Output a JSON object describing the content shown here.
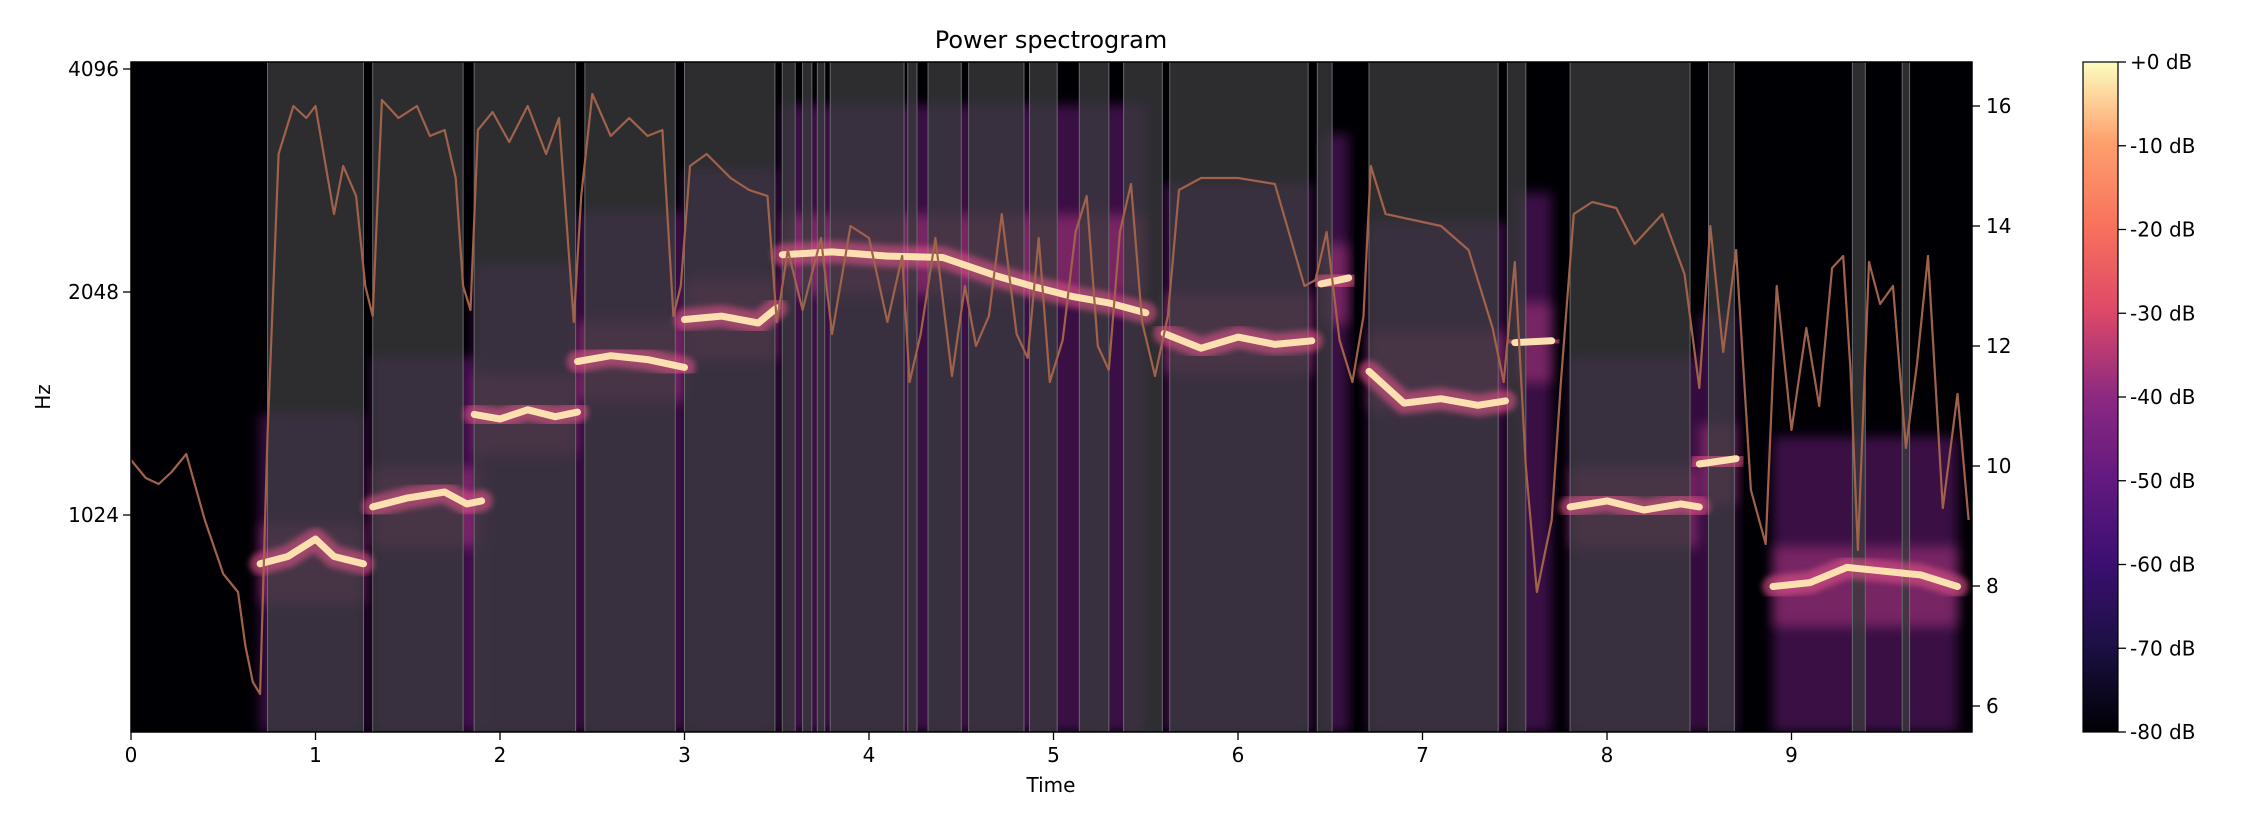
{
  "chart_data": {
    "type": "heatmap",
    "title": "Power spectrogram",
    "xlabel": "Time",
    "ylabel": "Hz",
    "xlim": [
      0,
      10
    ],
    "x_ticks": [
      "0",
      "1",
      "2",
      "3",
      "4",
      "5",
      "6",
      "7",
      "8",
      "9"
    ],
    "y_scale": "log2",
    "y_ticks": [
      "1024",
      "2048",
      "4096"
    ],
    "y2_ticks": [
      "6",
      "8",
      "10",
      "12",
      "14",
      "16"
    ],
    "colorbar": {
      "colormap": "magma",
      "ticks": [
        "+0 dB",
        "-10 dB",
        "-20 dB",
        "-30 dB",
        "-40 dB",
        "-50 dB",
        "-60 dB",
        "-70 dB",
        "-80 dB"
      ],
      "range_db": [
        -80,
        0
      ]
    },
    "colors": {
      "shade_overlay": "#3a3a3e",
      "overlay_line": "#a0624a",
      "harmonic_peak": "#fde0b0",
      "plot_background": "#000004"
    },
    "shaded_segments": [
      [
        0.74,
        1.26
      ],
      [
        1.31,
        1.8
      ],
      [
        1.86,
        2.41
      ],
      [
        2.46,
        2.95
      ],
      [
        3.0,
        3.49
      ],
      [
        3.53,
        3.6
      ],
      [
        3.64,
        3.69
      ],
      [
        3.72,
        3.76
      ],
      [
        3.79,
        4.19
      ],
      [
        4.21,
        4.26
      ],
      [
        4.32,
        4.5
      ],
      [
        4.54,
        4.84
      ],
      [
        4.87,
        5.02
      ],
      [
        5.14,
        5.3
      ],
      [
        5.38,
        5.59
      ],
      [
        5.63,
        6.38
      ],
      [
        6.43,
        6.51
      ],
      [
        6.71,
        7.41
      ],
      [
        7.46,
        7.56
      ],
      [
        7.8,
        8.45
      ],
      [
        8.55,
        8.69
      ],
      [
        9.33,
        9.4
      ],
      [
        9.6,
        9.64
      ]
    ],
    "harmonic_track_hz": [
      {
        "t": [
          0.7,
          0.85,
          1.0,
          1.1,
          1.26
        ],
        "hz": [
          880,
          900,
          950,
          900,
          880
        ]
      },
      {
        "t": [
          1.31,
          1.5,
          1.7,
          1.82,
          1.9
        ],
        "hz": [
          1050,
          1080,
          1100,
          1060,
          1070
        ]
      },
      {
        "t": [
          1.86,
          2.0,
          2.15,
          2.3,
          2.42
        ],
        "hz": [
          1400,
          1380,
          1420,
          1390,
          1410
        ]
      },
      {
        "t": [
          2.42,
          2.6,
          2.8,
          3.0
        ],
        "hz": [
          1650,
          1680,
          1660,
          1620
        ]
      },
      {
        "t": [
          3.0,
          3.2,
          3.4,
          3.5
        ],
        "hz": [
          1880,
          1900,
          1860,
          1950
        ]
      },
      {
        "t": [
          3.53,
          3.8,
          4.1,
          4.4,
          4.7,
          4.9,
          5.1,
          5.3,
          5.5
        ],
        "hz": [
          2300,
          2320,
          2290,
          2280,
          2150,
          2080,
          2020,
          1980,
          1920
        ]
      },
      {
        "t": [
          5.6,
          5.8,
          6.0,
          6.2,
          6.4
        ],
        "hz": [
          1800,
          1720,
          1780,
          1740,
          1760
        ]
      },
      {
        "t": [
          6.45,
          6.6
        ],
        "hz": [
          2100,
          2140
        ]
      },
      {
        "t": [
          6.71,
          6.9,
          7.1,
          7.3,
          7.45
        ],
        "hz": [
          1600,
          1450,
          1470,
          1440,
          1460
        ]
      },
      {
        "t": [
          7.5,
          7.7
        ],
        "hz": [
          1750,
          1760
        ]
      },
      {
        "t": [
          7.8,
          8.0,
          8.2,
          8.4,
          8.5
        ],
        "hz": [
          1050,
          1070,
          1040,
          1060,
          1050
        ]
      },
      {
        "t": [
          8.5,
          8.7
        ],
        "hz": [
          1200,
          1220
        ]
      },
      {
        "t": [
          8.9,
          9.1,
          9.3,
          9.5,
          9.7,
          9.9
        ],
        "hz": [
          820,
          830,
          870,
          860,
          850,
          820
        ]
      }
    ],
    "overlay_curve": {
      "axis": "right",
      "t": [
        0.0,
        0.08,
        0.15,
        0.22,
        0.3,
        0.4,
        0.5,
        0.58,
        0.62,
        0.66,
        0.7,
        0.74,
        0.8,
        0.88,
        0.95,
        1.0,
        1.05,
        1.1,
        1.15,
        1.22,
        1.27,
        1.31,
        1.36,
        1.45,
        1.55,
        1.62,
        1.7,
        1.76,
        1.8,
        1.84,
        1.88,
        1.96,
        2.05,
        2.15,
        2.25,
        2.32,
        2.4,
        2.44,
        2.5,
        2.6,
        2.7,
        2.8,
        2.88,
        2.94,
        2.98,
        3.03,
        3.12,
        3.25,
        3.35,
        3.45,
        3.5,
        3.56,
        3.64,
        3.74,
        3.8,
        3.9,
        4.0,
        4.1,
        4.18,
        4.22,
        4.28,
        4.36,
        4.45,
        4.52,
        4.58,
        4.65,
        4.72,
        4.8,
        4.86,
        4.92,
        4.98,
        5.05,
        5.12,
        5.18,
        5.24,
        5.3,
        5.36,
        5.42,
        5.48,
        5.55,
        5.62,
        5.68,
        5.8,
        6.0,
        6.2,
        6.36,
        6.42,
        6.48,
        6.55,
        6.62,
        6.68,
        6.72,
        6.8,
        6.95,
        7.1,
        7.25,
        7.38,
        7.44,
        7.5,
        7.56,
        7.62,
        7.7,
        7.75,
        7.82,
        7.92,
        8.05,
        8.15,
        8.3,
        8.42,
        8.5,
        8.56,
        8.63,
        8.7,
        8.78,
        8.86,
        8.92,
        9.0,
        9.08,
        9.15,
        9.22,
        9.28,
        9.32,
        9.36,
        9.42,
        9.48,
        9.55,
        9.62,
        9.68,
        9.74,
        9.82,
        9.9,
        9.96
      ],
      "v": [
        10.1,
        9.8,
        9.7,
        9.9,
        10.2,
        9.1,
        8.2,
        7.9,
        7.0,
        6.4,
        6.2,
        10.5,
        15.2,
        16.0,
        15.8,
        16.0,
        15.1,
        14.2,
        15.0,
        14.5,
        13.0,
        12.5,
        16.1,
        15.8,
        16.0,
        15.5,
        15.6,
        14.8,
        13.0,
        12.6,
        15.6,
        15.9,
        15.4,
        16.0,
        15.2,
        15.8,
        12.4,
        14.5,
        16.2,
        15.5,
        15.8,
        15.5,
        15.6,
        12.5,
        13.0,
        15.0,
        15.2,
        14.8,
        14.6,
        14.5,
        12.4,
        13.6,
        12.6,
        13.8,
        12.2,
        14.0,
        13.8,
        12.4,
        13.5,
        11.4,
        12.2,
        13.8,
        11.5,
        13.0,
        12.0,
        12.5,
        14.2,
        12.2,
        11.8,
        13.8,
        11.4,
        12.1,
        13.9,
        14.5,
        12.0,
        11.6,
        13.9,
        14.7,
        12.4,
        11.5,
        12.5,
        14.6,
        14.8,
        14.8,
        14.7,
        13.0,
        13.1,
        13.9,
        12.1,
        11.4,
        12.5,
        15.0,
        14.2,
        14.1,
        14.0,
        13.6,
        12.3,
        11.4,
        13.4,
        10.0,
        7.9,
        9.1,
        11.4,
        14.2,
        14.4,
        14.3,
        13.7,
        14.2,
        13.2,
        11.3,
        14.0,
        11.9,
        13.6,
        9.6,
        8.7,
        13.0,
        10.6,
        12.3,
        11.0,
        13.3,
        13.5,
        11.6,
        8.6,
        13.4,
        12.7,
        13.0,
        10.3,
        11.7,
        13.5,
        9.3,
        11.2,
        9.1
      ]
    }
  }
}
